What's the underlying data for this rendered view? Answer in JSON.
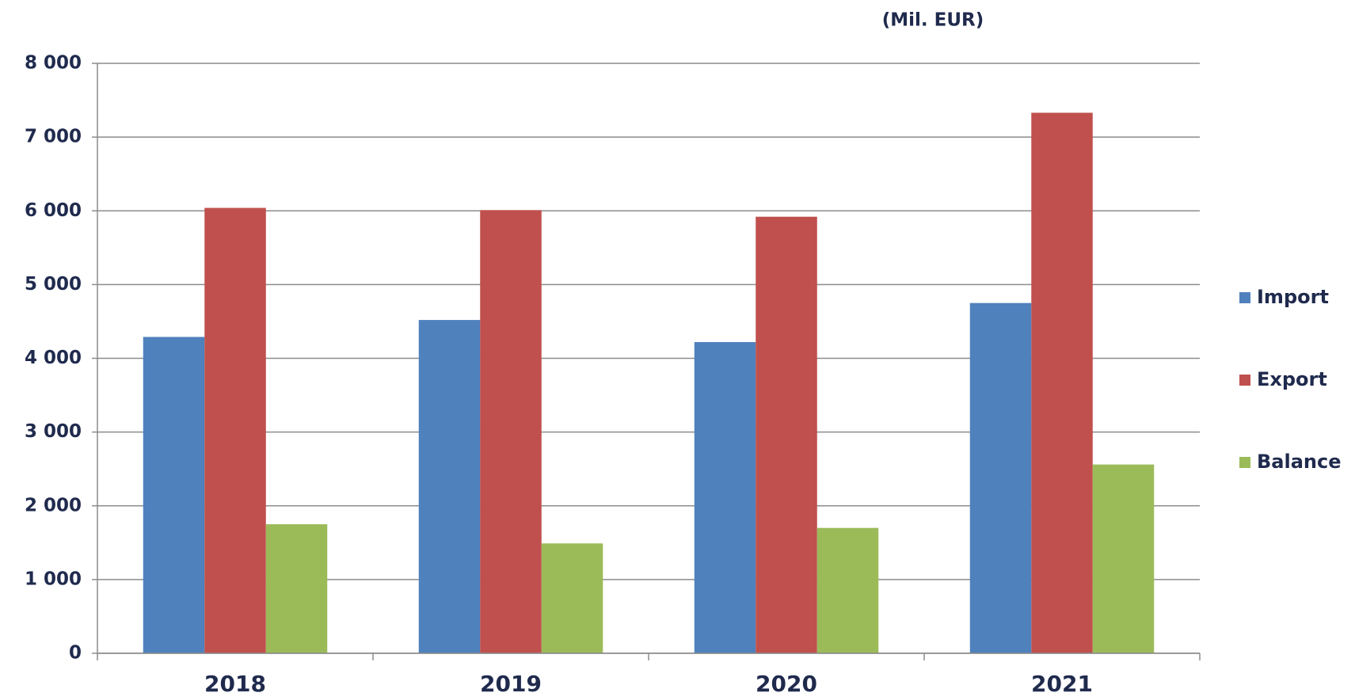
{
  "chart_data": {
    "type": "bar",
    "subtitle": "(Mil. EUR)",
    "categories": [
      "2018",
      "2019",
      "2020",
      "2021"
    ],
    "series": [
      {
        "name": "Import",
        "color": "#4f81bd",
        "values": [
          4290,
          4520,
          4220,
          4750
        ]
      },
      {
        "name": "Export",
        "color": "#c0504d",
        "values": [
          6040,
          6010,
          5920,
          7330
        ]
      },
      {
        "name": "Balance",
        "color": "#9bbb59",
        "values": [
          1750,
          1490,
          1700,
          2560
        ]
      }
    ],
    "ylim": [
      0,
      8000
    ],
    "yticks": [
      0,
      {
        "value": 1000,
        "label": "1 000"
      },
      {
        "value": 2000,
        "label": "2 000"
      },
      {
        "value": 3000,
        "label": "3 000"
      },
      {
        "value": 4000,
        "label": "4 000"
      },
      {
        "value": 5000,
        "label": "5 000"
      },
      {
        "value": 6000,
        "label": "6 000"
      },
      {
        "value": 7000,
        "label": "7 000"
      },
      {
        "value": 8000,
        "label": "8 000"
      }
    ],
    "grid": true,
    "legend": "right"
  }
}
